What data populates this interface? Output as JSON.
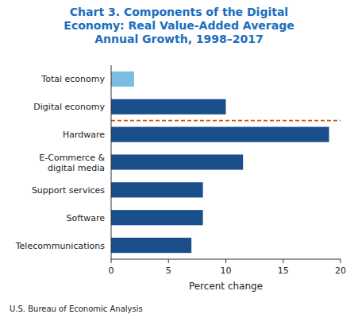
{
  "chart_data": {
    "type": "bar",
    "orientation": "horizontal",
    "title": "Chart 3. Components of the Digital\nEconomy: Real Value-Added Average\nAnnual Growth, 1998–2017",
    "categories": [
      "Telecommunications",
      "Software",
      "Support services",
      "E-Commerce &\ndigital media",
      "Hardware",
      "Digital economy",
      "Total economy"
    ],
    "values": [
      7.0,
      8.0,
      8.0,
      11.5,
      19.0,
      10.0,
      2.0
    ],
    "colors": [
      "#1A4F8C",
      "#1A4F8C",
      "#1A4F8C",
      "#1A4F8C",
      "#1A4F8C",
      "#1A4F8C",
      "#7ABDE0"
    ],
    "xlabel": "Percent change",
    "xlim": [
      0,
      20
    ],
    "xticks": [
      0,
      5,
      10,
      15,
      20
    ],
    "grid": false,
    "footnote": "U.S. Bureau of Economic Analysis"
  }
}
